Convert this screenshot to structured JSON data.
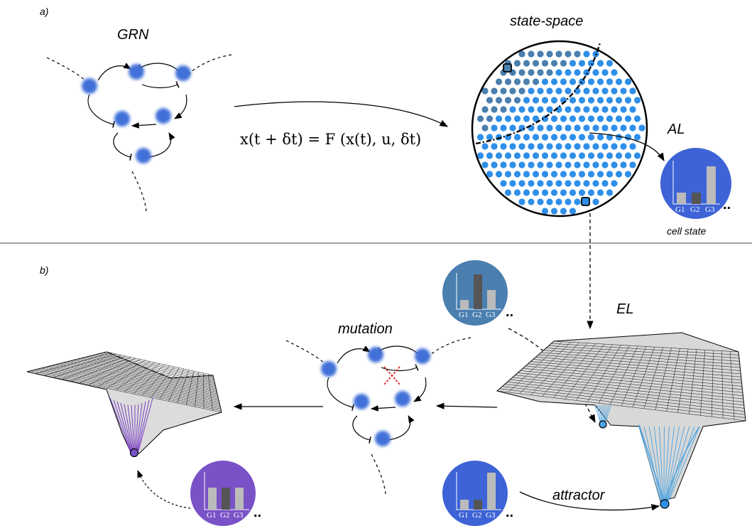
{
  "panel_a": {
    "label": "a)",
    "grn_label": "GRN",
    "equation": "x(t + δt) = F (x(t), u, δt)",
    "state_space_label": "state-space",
    "al_label": "AL",
    "cell_state_label": "cell state"
  },
  "panel_b": {
    "label": "b)",
    "mutation_label": "mutation",
    "el_label": "EL",
    "attractor_label": "attractor"
  },
  "gene_labels": [
    "G1",
    "G2",
    "G3"
  ],
  "ellipsis": "..",
  "colors": {
    "node": "#3f6fd8",
    "dot_light": "#2f8fe8",
    "dot_dark": "#4a7fae",
    "cell_blue": "#3d63d6",
    "cell_steel": "#4a7fb0",
    "cell_purple": "#7a52c7",
    "mutation_cross": "#e03030",
    "funnel_blue": "#4aa3e0",
    "funnel_purple": "#7030c0"
  }
}
